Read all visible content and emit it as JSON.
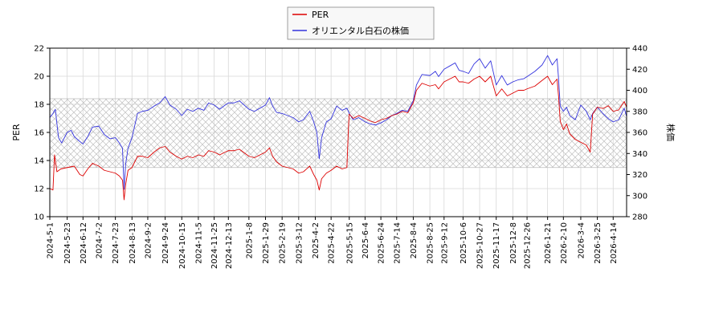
{
  "chart_data": {
    "type": "line",
    "title": "",
    "xlabel": "",
    "ylabel_left": "PER",
    "ylabel_right": "株価",
    "ylim_left": [
      10,
      22
    ],
    "ylim_right": [
      280,
      440
    ],
    "yticks_left": [
      10,
      12,
      14,
      16,
      18,
      20,
      22
    ],
    "yticks_right": [
      280,
      300,
      320,
      340,
      360,
      380,
      400,
      420,
      440
    ],
    "x_range": [
      "2024-05-01",
      "2026-05-01"
    ],
    "x_ticks": [
      "2024-5-1",
      "2024-5-23",
      "2024-6-12",
      "2024-7-2",
      "2024-7-23",
      "2024-8-13",
      "2024-9-2",
      "2024-9-24",
      "2024-10-15",
      "2024-11-5",
      "2024-11-25",
      "2024-12-13",
      "2025-1-8",
      "2025-1-29",
      "2025-2-19",
      "2025-3-12",
      "2025-4-2",
      "2025-4-22",
      "2025-5-15",
      "2025-6-4",
      "2025-6-24",
      "2025-7-14",
      "2025-8-4",
      "2025-8-25",
      "2025-9-12",
      "2025-10-6",
      "2025-10-27",
      "2025-11-17",
      "2025-12-8",
      "2025-12-26",
      "2026-1-21",
      "2026-2-10",
      "2026-3-4",
      "2026-3-25",
      "2026-4-14"
    ],
    "grid": true,
    "legend_position": "top-center",
    "band": {
      "axis": "left",
      "from": 13.5,
      "to": 18.4,
      "hatch": "crosshatch",
      "color": "#c0c0c0"
    },
    "series": [
      {
        "name": "PER",
        "axis": "left",
        "color": "#dd0000",
        "points": [
          [
            "2024-05-01",
            12.0
          ],
          [
            "2024-05-05",
            11.9
          ],
          [
            "2024-05-07",
            14.4
          ],
          [
            "2024-05-10",
            13.2
          ],
          [
            "2024-05-15",
            13.4
          ],
          [
            "2024-05-23",
            13.5
          ],
          [
            "2024-06-01",
            13.6
          ],
          [
            "2024-06-08",
            13.0
          ],
          [
            "2024-06-12",
            12.9
          ],
          [
            "2024-06-18",
            13.4
          ],
          [
            "2024-06-24",
            13.8
          ],
          [
            "2024-07-02",
            13.6
          ],
          [
            "2024-07-09",
            13.3
          ],
          [
            "2024-07-16",
            13.2
          ],
          [
            "2024-07-23",
            13.1
          ],
          [
            "2024-07-28",
            12.9
          ],
          [
            "2024-08-01",
            12.6
          ],
          [
            "2024-08-03",
            11.2
          ],
          [
            "2024-08-05",
            12.3
          ],
          [
            "2024-08-08",
            13.3
          ],
          [
            "2024-08-13",
            13.5
          ],
          [
            "2024-08-20",
            14.3
          ],
          [
            "2024-08-26",
            14.3
          ],
          [
            "2024-09-02",
            14.2
          ],
          [
            "2024-09-10",
            14.6
          ],
          [
            "2024-09-17",
            14.9
          ],
          [
            "2024-09-24",
            15.0
          ],
          [
            "2024-09-30",
            14.6
          ],
          [
            "2024-10-08",
            14.3
          ],
          [
            "2024-10-15",
            14.1
          ],
          [
            "2024-10-22",
            14.3
          ],
          [
            "2024-10-29",
            14.2
          ],
          [
            "2024-11-05",
            14.4
          ],
          [
            "2024-11-12",
            14.3
          ],
          [
            "2024-11-18",
            14.7
          ],
          [
            "2024-11-25",
            14.6
          ],
          [
            "2024-12-02",
            14.4
          ],
          [
            "2024-12-09",
            14.6
          ],
          [
            "2024-12-13",
            14.7
          ],
          [
            "2024-12-20",
            14.7
          ],
          [
            "2024-12-27",
            14.8
          ],
          [
            "2025-01-08",
            14.3
          ],
          [
            "2025-01-15",
            14.2
          ],
          [
            "2025-01-22",
            14.4
          ],
          [
            "2025-01-29",
            14.6
          ],
          [
            "2025-02-03",
            14.9
          ],
          [
            "2025-02-07",
            14.3
          ],
          [
            "2025-02-12",
            13.9
          ],
          [
            "2025-02-19",
            13.6
          ],
          [
            "2025-02-26",
            13.5
          ],
          [
            "2025-03-05",
            13.4
          ],
          [
            "2025-03-12",
            13.1
          ],
          [
            "2025-03-18",
            13.2
          ],
          [
            "2025-03-26",
            13.6
          ],
          [
            "2025-03-31",
            13.0
          ],
          [
            "2025-04-04",
            12.6
          ],
          [
            "2025-04-07",
            11.9
          ],
          [
            "2025-04-10",
            12.7
          ],
          [
            "2025-04-16",
            13.1
          ],
          [
            "2025-04-22",
            13.3
          ],
          [
            "2025-04-29",
            13.6
          ],
          [
            "2025-05-06",
            13.4
          ],
          [
            "2025-05-12",
            13.5
          ],
          [
            "2025-05-14",
            16.4
          ],
          [
            "2025-05-15",
            17.3
          ],
          [
            "2025-05-20",
            17.0
          ],
          [
            "2025-05-27",
            17.2
          ],
          [
            "2025-06-04",
            17.0
          ],
          [
            "2025-06-11",
            16.8
          ],
          [
            "2025-06-17",
            16.7
          ],
          [
            "2025-06-24",
            16.9
          ],
          [
            "2025-07-01",
            17.0
          ],
          [
            "2025-07-08",
            17.2
          ],
          [
            "2025-07-14",
            17.3
          ],
          [
            "2025-07-21",
            17.5
          ],
          [
            "2025-07-28",
            17.4
          ],
          [
            "2025-08-04",
            18.1
          ],
          [
            "2025-08-08",
            19.0
          ],
          [
            "2025-08-15",
            19.5
          ],
          [
            "2025-08-25",
            19.3
          ],
          [
            "2025-09-01",
            19.4
          ],
          [
            "2025-09-05",
            19.1
          ],
          [
            "2025-09-12",
            19.6
          ],
          [
            "2025-09-19",
            19.8
          ],
          [
            "2025-09-26",
            20.0
          ],
          [
            "2025-10-01",
            19.6
          ],
          [
            "2025-10-06",
            19.6
          ],
          [
            "2025-10-13",
            19.5
          ],
          [
            "2025-10-20",
            19.8
          ],
          [
            "2025-10-27",
            20.0
          ],
          [
            "2025-11-03",
            19.6
          ],
          [
            "2025-11-10",
            20.0
          ],
          [
            "2025-11-14",
            19.2
          ],
          [
            "2025-11-17",
            18.6
          ],
          [
            "2025-11-24",
            19.1
          ],
          [
            "2025-12-01",
            18.6
          ],
          [
            "2025-12-08",
            18.8
          ],
          [
            "2025-12-15",
            19.0
          ],
          [
            "2025-12-22",
            19.0
          ],
          [
            "2025-12-26",
            19.1
          ],
          [
            "2026-01-05",
            19.3
          ],
          [
            "2026-01-14",
            19.7
          ],
          [
            "2026-01-21",
            20.0
          ],
          [
            "2026-01-27",
            19.4
          ],
          [
            "2026-02-02",
            19.8
          ],
          [
            "2026-02-04",
            18.5
          ],
          [
            "2026-02-06",
            16.8
          ],
          [
            "2026-02-10",
            16.2
          ],
          [
            "2026-02-14",
            16.6
          ],
          [
            "2026-02-18",
            15.9
          ],
          [
            "2026-02-25",
            15.5
          ],
          [
            "2026-03-04",
            15.3
          ],
          [
            "2026-03-11",
            15.1
          ],
          [
            "2026-03-16",
            14.6
          ],
          [
            "2026-03-19",
            17.3
          ],
          [
            "2026-03-25",
            17.8
          ],
          [
            "2026-04-01",
            17.7
          ],
          [
            "2026-04-08",
            17.9
          ],
          [
            "2026-04-14",
            17.5
          ],
          [
            "2026-04-21",
            17.6
          ],
          [
            "2026-04-28",
            18.2
          ],
          [
            "2026-05-01",
            17.8
          ]
        ]
      },
      {
        "name": "オリエンタル白石の株価",
        "axis": "right",
        "color": "#3333dd",
        "points": [
          [
            "2024-05-01",
            374
          ],
          [
            "2024-05-05",
            378
          ],
          [
            "2024-05-08",
            382
          ],
          [
            "2024-05-12",
            355
          ],
          [
            "2024-05-16",
            350
          ],
          [
            "2024-05-23",
            360
          ],
          [
            "2024-05-28",
            362
          ],
          [
            "2024-06-01",
            356
          ],
          [
            "2024-06-07",
            352
          ],
          [
            "2024-06-12",
            349
          ],
          [
            "2024-06-18",
            356
          ],
          [
            "2024-06-24",
            365
          ],
          [
            "2024-07-02",
            366
          ],
          [
            "2024-07-09",
            358
          ],
          [
            "2024-07-16",
            354
          ],
          [
            "2024-07-23",
            355
          ],
          [
            "2024-07-28",
            350
          ],
          [
            "2024-08-01",
            345
          ],
          [
            "2024-08-03",
            306
          ],
          [
            "2024-08-05",
            330
          ],
          [
            "2024-08-08",
            345
          ],
          [
            "2024-08-13",
            355
          ],
          [
            "2024-08-20",
            378
          ],
          [
            "2024-08-26",
            380
          ],
          [
            "2024-09-02",
            381
          ],
          [
            "2024-09-10",
            385
          ],
          [
            "2024-09-17",
            388
          ],
          [
            "2024-09-24",
            394
          ],
          [
            "2024-09-30",
            386
          ],
          [
            "2024-10-08",
            382
          ],
          [
            "2024-10-15",
            376
          ],
          [
            "2024-10-22",
            382
          ],
          [
            "2024-10-29",
            380
          ],
          [
            "2024-11-05",
            383
          ],
          [
            "2024-11-12",
            381
          ],
          [
            "2024-11-18",
            388
          ],
          [
            "2024-11-25",
            386
          ],
          [
            "2024-12-02",
            382
          ],
          [
            "2024-12-09",
            386
          ],
          [
            "2024-12-13",
            388
          ],
          [
            "2024-12-20",
            388
          ],
          [
            "2024-12-27",
            390
          ],
          [
            "2025-01-08",
            382
          ],
          [
            "2025-01-15",
            380
          ],
          [
            "2025-01-22",
            383
          ],
          [
            "2025-01-29",
            386
          ],
          [
            "2025-02-03",
            393
          ],
          [
            "2025-02-07",
            385
          ],
          [
            "2025-02-12",
            379
          ],
          [
            "2025-02-19",
            378
          ],
          [
            "2025-02-26",
            376
          ],
          [
            "2025-03-05",
            374
          ],
          [
            "2025-03-12",
            370
          ],
          [
            "2025-03-18",
            372
          ],
          [
            "2025-03-26",
            380
          ],
          [
            "2025-03-31",
            370
          ],
          [
            "2025-04-04",
            360
          ],
          [
            "2025-04-07",
            335
          ],
          [
            "2025-04-10",
            355
          ],
          [
            "2025-04-16",
            370
          ],
          [
            "2025-04-22",
            373
          ],
          [
            "2025-04-29",
            385
          ],
          [
            "2025-05-06",
            381
          ],
          [
            "2025-05-12",
            383
          ],
          [
            "2025-05-15",
            378
          ],
          [
            "2025-05-20",
            372
          ],
          [
            "2025-05-27",
            374
          ],
          [
            "2025-06-04",
            370
          ],
          [
            "2025-06-11",
            368
          ],
          [
            "2025-06-17",
            367
          ],
          [
            "2025-06-24",
            369
          ],
          [
            "2025-07-01",
            372
          ],
          [
            "2025-07-08",
            376
          ],
          [
            "2025-07-14",
            378
          ],
          [
            "2025-07-21",
            381
          ],
          [
            "2025-07-28",
            380
          ],
          [
            "2025-08-04",
            390
          ],
          [
            "2025-08-08",
            405
          ],
          [
            "2025-08-15",
            415
          ],
          [
            "2025-08-25",
            414
          ],
          [
            "2025-09-01",
            418
          ],
          [
            "2025-09-05",
            413
          ],
          [
            "2025-09-12",
            420
          ],
          [
            "2025-09-19",
            423
          ],
          [
            "2025-09-26",
            426
          ],
          [
            "2025-10-01",
            419
          ],
          [
            "2025-10-06",
            418
          ],
          [
            "2025-10-13",
            416
          ],
          [
            "2025-10-20",
            425
          ],
          [
            "2025-10-27",
            430
          ],
          [
            "2025-11-03",
            421
          ],
          [
            "2025-11-10",
            428
          ],
          [
            "2025-11-14",
            415
          ],
          [
            "2025-11-17",
            405
          ],
          [
            "2025-11-24",
            414
          ],
          [
            "2025-12-01",
            405
          ],
          [
            "2025-12-08",
            408
          ],
          [
            "2025-12-15",
            410
          ],
          [
            "2025-12-22",
            411
          ],
          [
            "2025-12-26",
            413
          ],
          [
            "2026-01-05",
            418
          ],
          [
            "2026-01-14",
            424
          ],
          [
            "2026-01-21",
            433
          ],
          [
            "2026-01-27",
            424
          ],
          [
            "2026-02-02",
            430
          ],
          [
            "2026-02-04",
            410
          ],
          [
            "2026-02-06",
            385
          ],
          [
            "2026-02-10",
            380
          ],
          [
            "2026-02-14",
            384
          ],
          [
            "2026-02-18",
            376
          ],
          [
            "2026-02-25",
            372
          ],
          [
            "2026-03-04",
            386
          ],
          [
            "2026-03-11",
            380
          ],
          [
            "2026-03-16",
            372
          ],
          [
            "2026-03-19",
            378
          ],
          [
            "2026-03-25",
            384
          ],
          [
            "2026-04-01",
            378
          ],
          [
            "2026-04-08",
            373
          ],
          [
            "2026-04-14",
            370
          ],
          [
            "2026-04-21",
            372
          ],
          [
            "2026-04-28",
            383
          ],
          [
            "2026-05-01",
            375
          ]
        ]
      }
    ]
  }
}
